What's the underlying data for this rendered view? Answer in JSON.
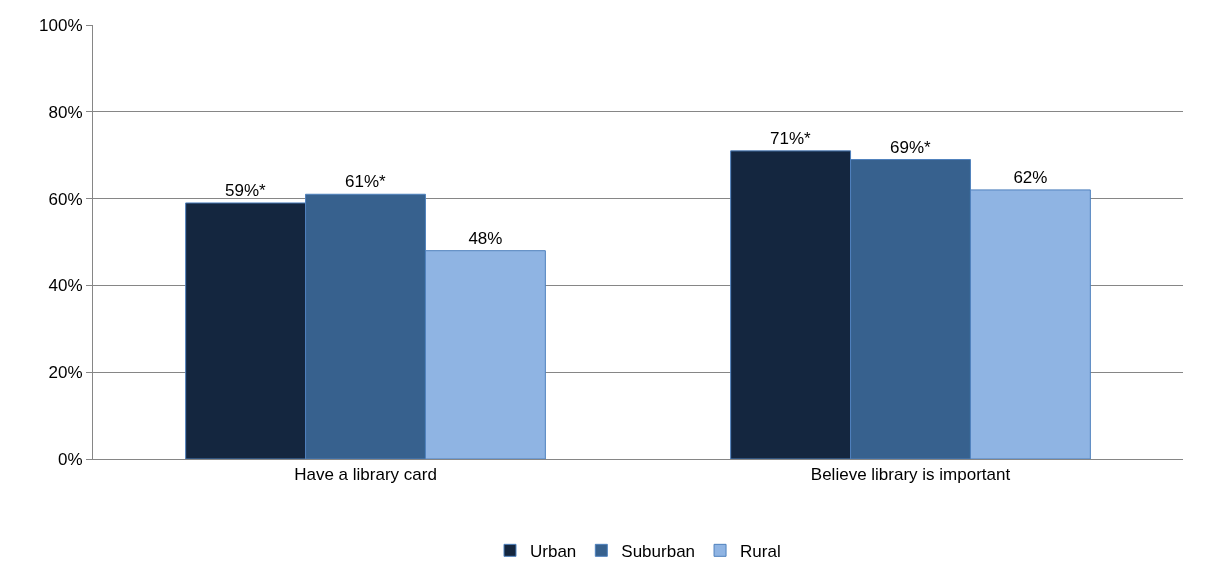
{
  "chart_data": {
    "type": "bar",
    "categories": [
      "Have a library card",
      "Believe library is important"
    ],
    "series": [
      {
        "name": "Urban",
        "color": "#14263f",
        "values": [
          59,
          71
        ],
        "value_labels": [
          "59%*",
          "71%*"
        ]
      },
      {
        "name": "Suburban",
        "color": "#37618e",
        "values": [
          61,
          69
        ],
        "value_labels": [
          "61%*",
          "69%*"
        ]
      },
      {
        "name": "Rural",
        "color": "#8fb4e3",
        "values": [
          48,
          62
        ],
        "value_labels": [
          "48%",
          "62%"
        ]
      }
    ],
    "ylim": [
      0,
      100
    ],
    "yticks": [
      {
        "value": 0,
        "label": "0%"
      },
      {
        "value": 20,
        "label": "20%"
      },
      {
        "value": 40,
        "label": "40%"
      },
      {
        "value": 60,
        "label": "60%"
      },
      {
        "value": 80,
        "label": "80%"
      },
      {
        "value": 100,
        "label": "100%"
      }
    ],
    "grid": "y",
    "legend": "bottom"
  }
}
